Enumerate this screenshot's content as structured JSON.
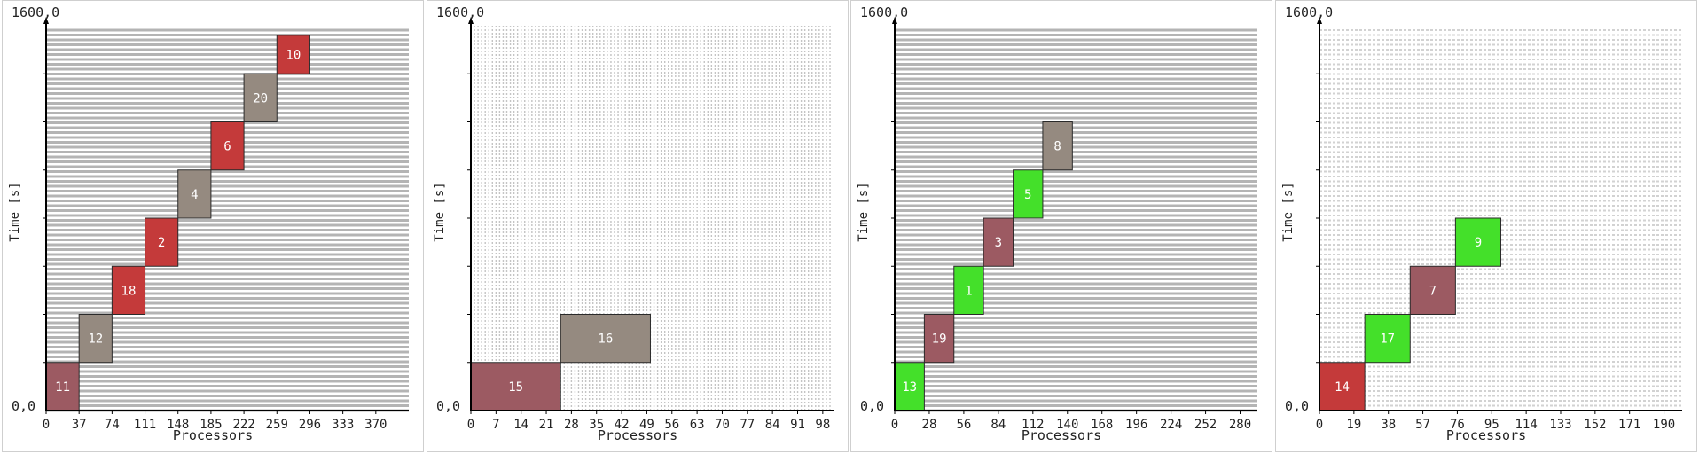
{
  "chart_data": [
    {
      "type": "gantt",
      "ylabel": "Time [s]",
      "xlabel": "Processors",
      "ylim_top_label": "1600,0",
      "ylim_bottom_label": "0,0",
      "ylim": [
        0,
        1600
      ],
      "xlim": [
        0,
        407
      ],
      "x_ticks": [
        0,
        37,
        74,
        111,
        148,
        185,
        222,
        259,
        296,
        333,
        370
      ],
      "grid": "dense-horizontal",
      "tasks": [
        {
          "id": "11",
          "x0": 0,
          "x1": 37,
          "y0": 0,
          "y1": 200,
          "color": "#9c5a62"
        },
        {
          "id": "12",
          "x0": 37,
          "x1": 74,
          "y0": 200,
          "y1": 400,
          "color": "#958a80"
        },
        {
          "id": "18",
          "x0": 74,
          "x1": 111,
          "y0": 400,
          "y1": 600,
          "color": "#c43a3a"
        },
        {
          "id": "2",
          "x0": 111,
          "x1": 148,
          "y0": 600,
          "y1": 800,
          "color": "#c43a3a"
        },
        {
          "id": "4",
          "x0": 148,
          "x1": 185,
          "y0": 800,
          "y1": 1000,
          "color": "#958a80"
        },
        {
          "id": "6",
          "x0": 185,
          "x1": 222,
          "y0": 1000,
          "y1": 1200,
          "color": "#c43a3a"
        },
        {
          "id": "20",
          "x0": 222,
          "x1": 259,
          "y0": 1200,
          "y1": 1400,
          "color": "#958a80"
        },
        {
          "id": "10",
          "x0": 259,
          "x1": 296,
          "y0": 1400,
          "y1": 1560,
          "color": "#c43a3a"
        }
      ]
    },
    {
      "type": "gantt",
      "ylabel": "Time [s]",
      "xlabel": "Processors",
      "ylim_top_label": "1600,0",
      "ylim_bottom_label": "0,0",
      "ylim": [
        0,
        1600
      ],
      "xlim": [
        0,
        101
      ],
      "x_ticks": [
        0,
        7,
        14,
        21,
        28,
        35,
        42,
        49,
        56,
        63,
        70,
        77,
        84,
        91,
        98
      ],
      "grid": "dense-vertical",
      "tasks": [
        {
          "id": "15",
          "x0": 0,
          "x1": 25,
          "y0": 0,
          "y1": 200,
          "color": "#9c5a62"
        },
        {
          "id": "16",
          "x0": 25,
          "x1": 50,
          "y0": 200,
          "y1": 400,
          "color": "#958a80"
        }
      ]
    },
    {
      "type": "gantt",
      "ylabel": "Time [s]",
      "xlabel": "Processors",
      "ylim_top_label": "1600,0",
      "ylim_bottom_label": "0,0",
      "ylim": [
        0,
        1600
      ],
      "xlim": [
        0,
        294
      ],
      "x_ticks": [
        0,
        28,
        56,
        84,
        112,
        140,
        168,
        196,
        224,
        252,
        280
      ],
      "grid": "dense-horizontal",
      "tasks": [
        {
          "id": "13",
          "x0": 0,
          "x1": 24,
          "y0": 0,
          "y1": 200,
          "color": "#44e02a"
        },
        {
          "id": "19",
          "x0": 24,
          "x1": 48,
          "y0": 200,
          "y1": 400,
          "color": "#9c5a62"
        },
        {
          "id": "1",
          "x0": 48,
          "x1": 72,
          "y0": 400,
          "y1": 600,
          "color": "#44e02a"
        },
        {
          "id": "3",
          "x0": 72,
          "x1": 96,
          "y0": 600,
          "y1": 800,
          "color": "#9c5a62"
        },
        {
          "id": "5",
          "x0": 96,
          "x1": 120,
          "y0": 800,
          "y1": 1000,
          "color": "#44e02a"
        },
        {
          "id": "8",
          "x0": 120,
          "x1": 144,
          "y0": 1000,
          "y1": 1200,
          "color": "#958a80"
        }
      ]
    },
    {
      "type": "gantt",
      "ylabel": "Time [s]",
      "xlabel": "Processors",
      "ylim_top_label": "1600,0",
      "ylim_bottom_label": "0,0",
      "ylim": [
        0,
        1600
      ],
      "xlim": [
        0,
        200
      ],
      "x_ticks": [
        0,
        19,
        38,
        57,
        76,
        95,
        114,
        133,
        152,
        171,
        190
      ],
      "grid": "light-horizontal",
      "tasks": [
        {
          "id": "14",
          "x0": 0,
          "x1": 25,
          "y0": 0,
          "y1": 200,
          "color": "#c43a3a"
        },
        {
          "id": "17",
          "x0": 25,
          "x1": 50,
          "y0": 200,
          "y1": 400,
          "color": "#44e02a"
        },
        {
          "id": "7",
          "x0": 50,
          "x1": 75,
          "y0": 400,
          "y1": 600,
          "color": "#9c5a62"
        },
        {
          "id": "9",
          "x0": 75,
          "x1": 100,
          "y0": 600,
          "y1": 800,
          "color": "#44e02a"
        }
      ]
    }
  ]
}
